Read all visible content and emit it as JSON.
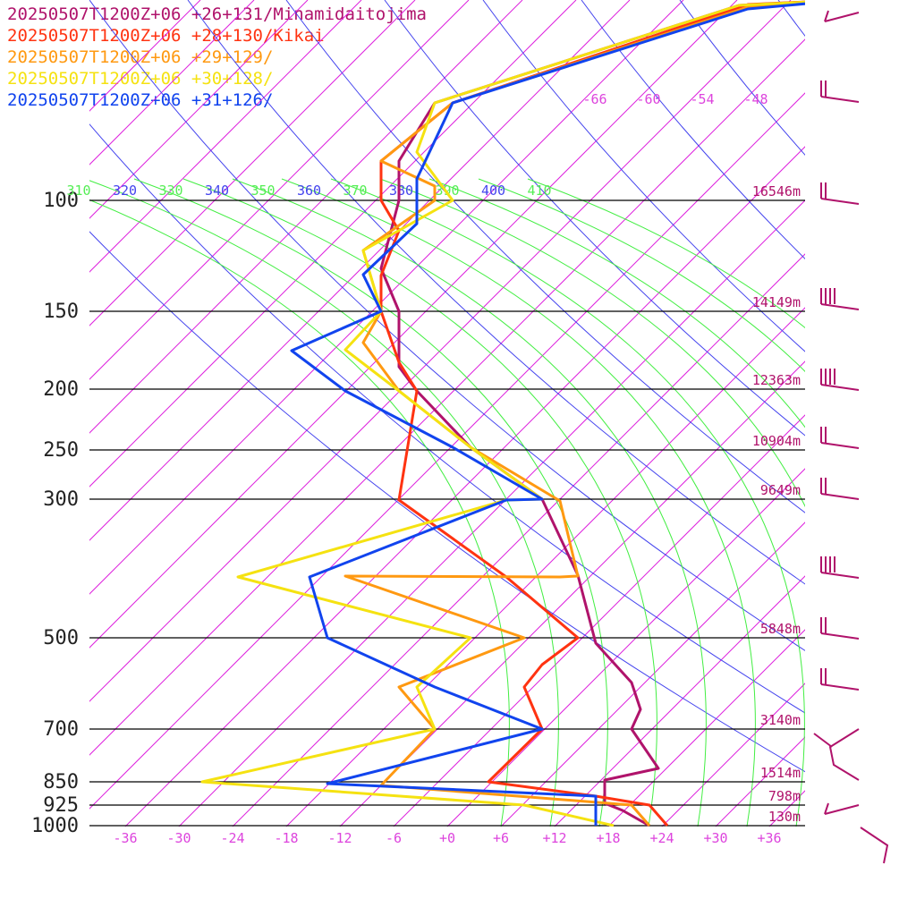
{
  "legend": [
    {
      "label": "20250507T1200Z+06 +26+131/Minamidaitojima",
      "color": "#b0136b"
    },
    {
      "label": "20250507T1200Z+06 +28+130/Kikai",
      "color": "#ff3311"
    },
    {
      "label": "20250507T1200Z+06 +29+129/",
      "color": "#ff9911"
    },
    {
      "label": "20250507T1200Z+06 +30+128/",
      "color": "#f5e211"
    },
    {
      "label": "20250507T1200Z+06 +31+126/",
      "color": "#1144ee"
    }
  ],
  "chart_data": {
    "type": "line",
    "title": "",
    "pressure_levels": [
      {
        "p": 100,
        "label": "100",
        "height": "16546m"
      },
      {
        "p": 150,
        "label": "150",
        "height": "14149m"
      },
      {
        "p": 200,
        "label": "200",
        "height": "12363m"
      },
      {
        "p": 250,
        "label": "250",
        "height": "10904m"
      },
      {
        "p": 300,
        "label": "300",
        "height": "9649m"
      },
      {
        "p": 500,
        "label": "500",
        "height": "5848m"
      },
      {
        "p": 700,
        "label": "700",
        "height": "3140m"
      },
      {
        "p": 850,
        "label": "850",
        "height": "1514m"
      },
      {
        "p": 925,
        "label": "925",
        "height": "798m"
      },
      {
        "p": 1000,
        "label": "1000",
        "height": "130m"
      }
    ],
    "x_ticks": [
      "-36",
      "-30",
      "-24",
      "-18",
      "-12",
      "-6",
      "+0",
      "+6",
      "+12",
      "+18",
      "+24",
      "+30",
      "+36"
    ],
    "upper_ticks": [
      "-66",
      "-60",
      "-54",
      "-48"
    ],
    "theta_labels": [
      "310",
      "320",
      "330",
      "340",
      "350",
      "360",
      "370",
      "380",
      "390",
      "400",
      "410"
    ],
    "series": [
      {
        "name": "20250507T1200Z+06 +26+131/Minamidaitojima",
        "color": "#b0136b",
        "points": [
          [
            44,
            0
          ],
          [
            32,
            6
          ],
          [
            -2,
            115
          ],
          [
            -6,
            180
          ],
          [
            -6,
            224
          ],
          [
            -8,
            300
          ],
          [
            -6,
            348
          ],
          [
            -6,
            410
          ],
          [
            -4,
            437
          ],
          [
            2,
            500
          ],
          [
            10,
            558
          ],
          [
            14,
            643
          ],
          [
            16,
            719
          ],
          [
            20,
            763
          ],
          [
            21,
            793
          ],
          [
            20,
            815
          ],
          [
            23,
            859
          ],
          [
            17,
            872
          ],
          [
            17,
            898
          ],
          [
            19,
            906
          ],
          [
            22,
            923
          ]
        ]
      },
      {
        "name": "20250507T1200Z+06 +28+130/Kikai",
        "color": "#ff3311",
        "points": [
          [
            44,
            0
          ],
          [
            33,
            5
          ],
          [
            0,
            115
          ],
          [
            -8,
            180
          ],
          [
            -8,
            224
          ],
          [
            -6,
            258
          ],
          [
            -8,
            308
          ],
          [
            -8,
            348
          ],
          [
            -6,
            405
          ],
          [
            -4,
            437
          ],
          [
            -6,
            559
          ],
          [
            6,
            645
          ],
          [
            14,
            713
          ],
          [
            10,
            743
          ],
          [
            8,
            768
          ],
          [
            10,
            815
          ],
          [
            4,
            874
          ],
          [
            16,
            890
          ],
          [
            22,
            900
          ],
          [
            24,
            923
          ]
        ]
      },
      {
        "name": "20250507T1200Z+06 +29+129/",
        "color": "#ff9911",
        "points": [
          [
            44,
            0
          ],
          [
            33,
            8
          ],
          [
            0,
            115
          ],
          [
            -8,
            180
          ],
          [
            -2,
            208
          ],
          [
            -2,
            224
          ],
          [
            -10,
            280
          ],
          [
            -8,
            348
          ],
          [
            -10,
            383
          ],
          [
            -6,
            437
          ],
          [
            2,
            500
          ],
          [
            12,
            560
          ],
          [
            14,
            644
          ],
          [
            12,
            645
          ],
          [
            -12,
            644
          ],
          [
            8,
            713
          ],
          [
            -6,
            768
          ],
          [
            -2,
            815
          ],
          [
            -8,
            878
          ],
          [
            20,
            900
          ],
          [
            22,
            923
          ]
        ]
      },
      {
        "name": "20250507T1200Z+06 +30+128/",
        "color": "#f5e211",
        "points": [
          [
            44,
            0
          ],
          [
            32,
            6
          ],
          [
            -2,
            115
          ],
          [
            -4,
            170
          ],
          [
            0,
            224
          ],
          [
            -10,
            280
          ],
          [
            -8,
            348
          ],
          [
            -12,
            391
          ],
          [
            -6,
            437
          ],
          [
            2,
            500
          ],
          [
            10,
            558
          ],
          [
            6,
            559
          ],
          [
            -24,
            645
          ],
          [
            2,
            713
          ],
          [
            -4,
            768
          ],
          [
            -2,
            815
          ],
          [
            -28,
            874
          ],
          [
            8,
            900
          ],
          [
            18,
            923
          ]
        ]
      },
      {
        "name": "20250507T1200Z+06 +31+126/",
        "color": "#1144ee",
        "points": [
          [
            44,
            0
          ],
          [
            33,
            10
          ],
          [
            0,
            115
          ],
          [
            -4,
            200
          ],
          [
            -4,
            224
          ],
          [
            -4,
            250
          ],
          [
            -10,
            307
          ],
          [
            -8,
            348
          ],
          [
            -18,
            392
          ],
          [
            -12,
            437
          ],
          [
            0,
            500
          ],
          [
            10,
            558
          ],
          [
            6,
            559
          ],
          [
            -16,
            645
          ],
          [
            -14,
            713
          ],
          [
            -2,
            768
          ],
          [
            10,
            815
          ],
          [
            -14,
            876
          ],
          [
            16,
            890
          ],
          [
            16,
            900
          ],
          [
            16,
            923
          ]
        ]
      }
    ]
  }
}
